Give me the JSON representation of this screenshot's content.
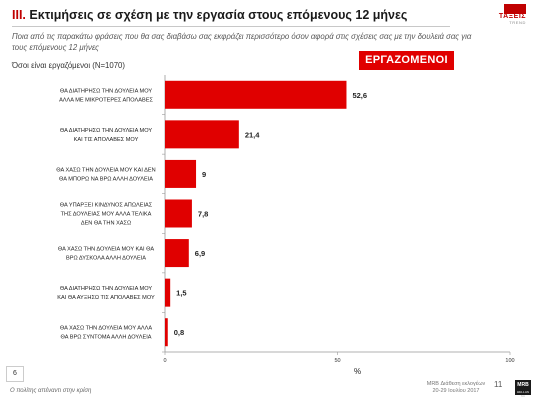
{
  "header": {
    "title_num": "III.",
    "title_text": "Εκτιμήσεις σε σχέση με την εργασία στους επόμενους 12 μήνες",
    "logo_text": "ΤΑΞΕΙΣ",
    "logo_sub": "TREND"
  },
  "question": "Ποια από τις παρακάτω φράσεις που θα σας διαβάσω σας εκφράζει περισσότερο όσον αφορά στις σχέσεις σας με την δουλειά σας για τους επόμενους 12 μήνες",
  "base": "Όσοι είναι εργαζόμενοι (N=1070)",
  "badge": "ΕΡΓΑΖΟΜΕΝΟΙ",
  "colors": {
    "bar": "#e00000",
    "accent": "#c00000"
  },
  "chart_data": {
    "type": "bar",
    "orientation": "horizontal",
    "categories": [
      [
        "ΘΑ ΔΙΑΤΗΡΗΣΩ ΤΗΝ ΔΟΥΛΕΙΑ ΜΟΥ",
        "ΑΛΛΑ ΜΕ ΜΙΚΡΟΤΕΡΕΣ ΑΠΟΛΑΒΕΣ"
      ],
      [
        "ΘΑ ΔΙΑΤΗΡΗΣΩ ΤΗΝ ΔΟΥΛΕΙΑ ΜΟΥ",
        "ΚΑΙ ΤΙΣ ΑΠΟΛΑΒΕΣ ΜΟΥ"
      ],
      [
        "ΘΑ ΧΑΣΩ ΤΗΝ ΔΟΥΛΕΙΑ ΜΟΥ ΚΑΙ ΔΕΝ",
        "ΘΑ ΜΠΟΡΩ ΝΑ ΒΡΩ ΑΛΛΗ ΔΟΥΛΕΙΑ"
      ],
      [
        "ΘΑ ΥΠΑΡΞΕΙ ΚΙΝΔΥΝΟΣ ΑΠΩΛΕΙΑΣ",
        "ΤΗΣ ΔΟΥΛΕΙΑΣ ΜΟΥ ΑΛΛΑ ΤΕΛΙΚΑ",
        "ΔΕΝ ΘΑ ΤΗΝ ΧΑΣΩ"
      ],
      [
        "ΘΑ ΧΑΣΩ ΤΗΝ ΔΟΥΛΕΙΑ ΜΟΥ ΚΑΙ ΘΑ",
        "ΒΡΩ ΔΥΣΚΟΛΑ ΑΛΛΗ ΔΟΥΛΕΙΑ"
      ],
      [
        "ΘΑ ΔΙΑΤΗΡΗΣΩ ΤΗΝ ΔΟΥΛΕΙΑ ΜΟΥ",
        "ΚΑΙ ΘΑ ΑΥΞΗΣΩ ΤΙΣ ΑΠΟΛΑΒΕΣ ΜΟΥ"
      ],
      [
        "ΘΑ ΧΑΣΩ ΤΗΝ ΔΟΥΛΕΙΑ ΜΟΥ ΑΛΛΑ",
        "ΘΑ ΒΡΩ ΣΥΝΤΟΜΑ ΑΛΛΗ ΔΟΥΛΕΙΑ"
      ]
    ],
    "values": [
      52.6,
      21.4,
      9,
      7.8,
      6.9,
      1.5,
      0.8
    ],
    "value_labels": [
      "52,6",
      "21,4",
      "9",
      "7,8",
      "6,9",
      "1,5",
      "0,8"
    ],
    "xlim": [
      0,
      100
    ],
    "xticks": [
      0,
      50,
      100
    ],
    "xlabel": "%",
    "grid": false
  },
  "footer": {
    "page": "6",
    "left": "Ο πολίτης απέναντι στην κρίση",
    "right_line1": "MRB Διάθεση εκλογέων",
    "right_line2": "20-29 Ιουλίου 2017",
    "page_num": "11",
    "mrb": "MRB",
    "mrb_sub": "HELLAS SA"
  }
}
